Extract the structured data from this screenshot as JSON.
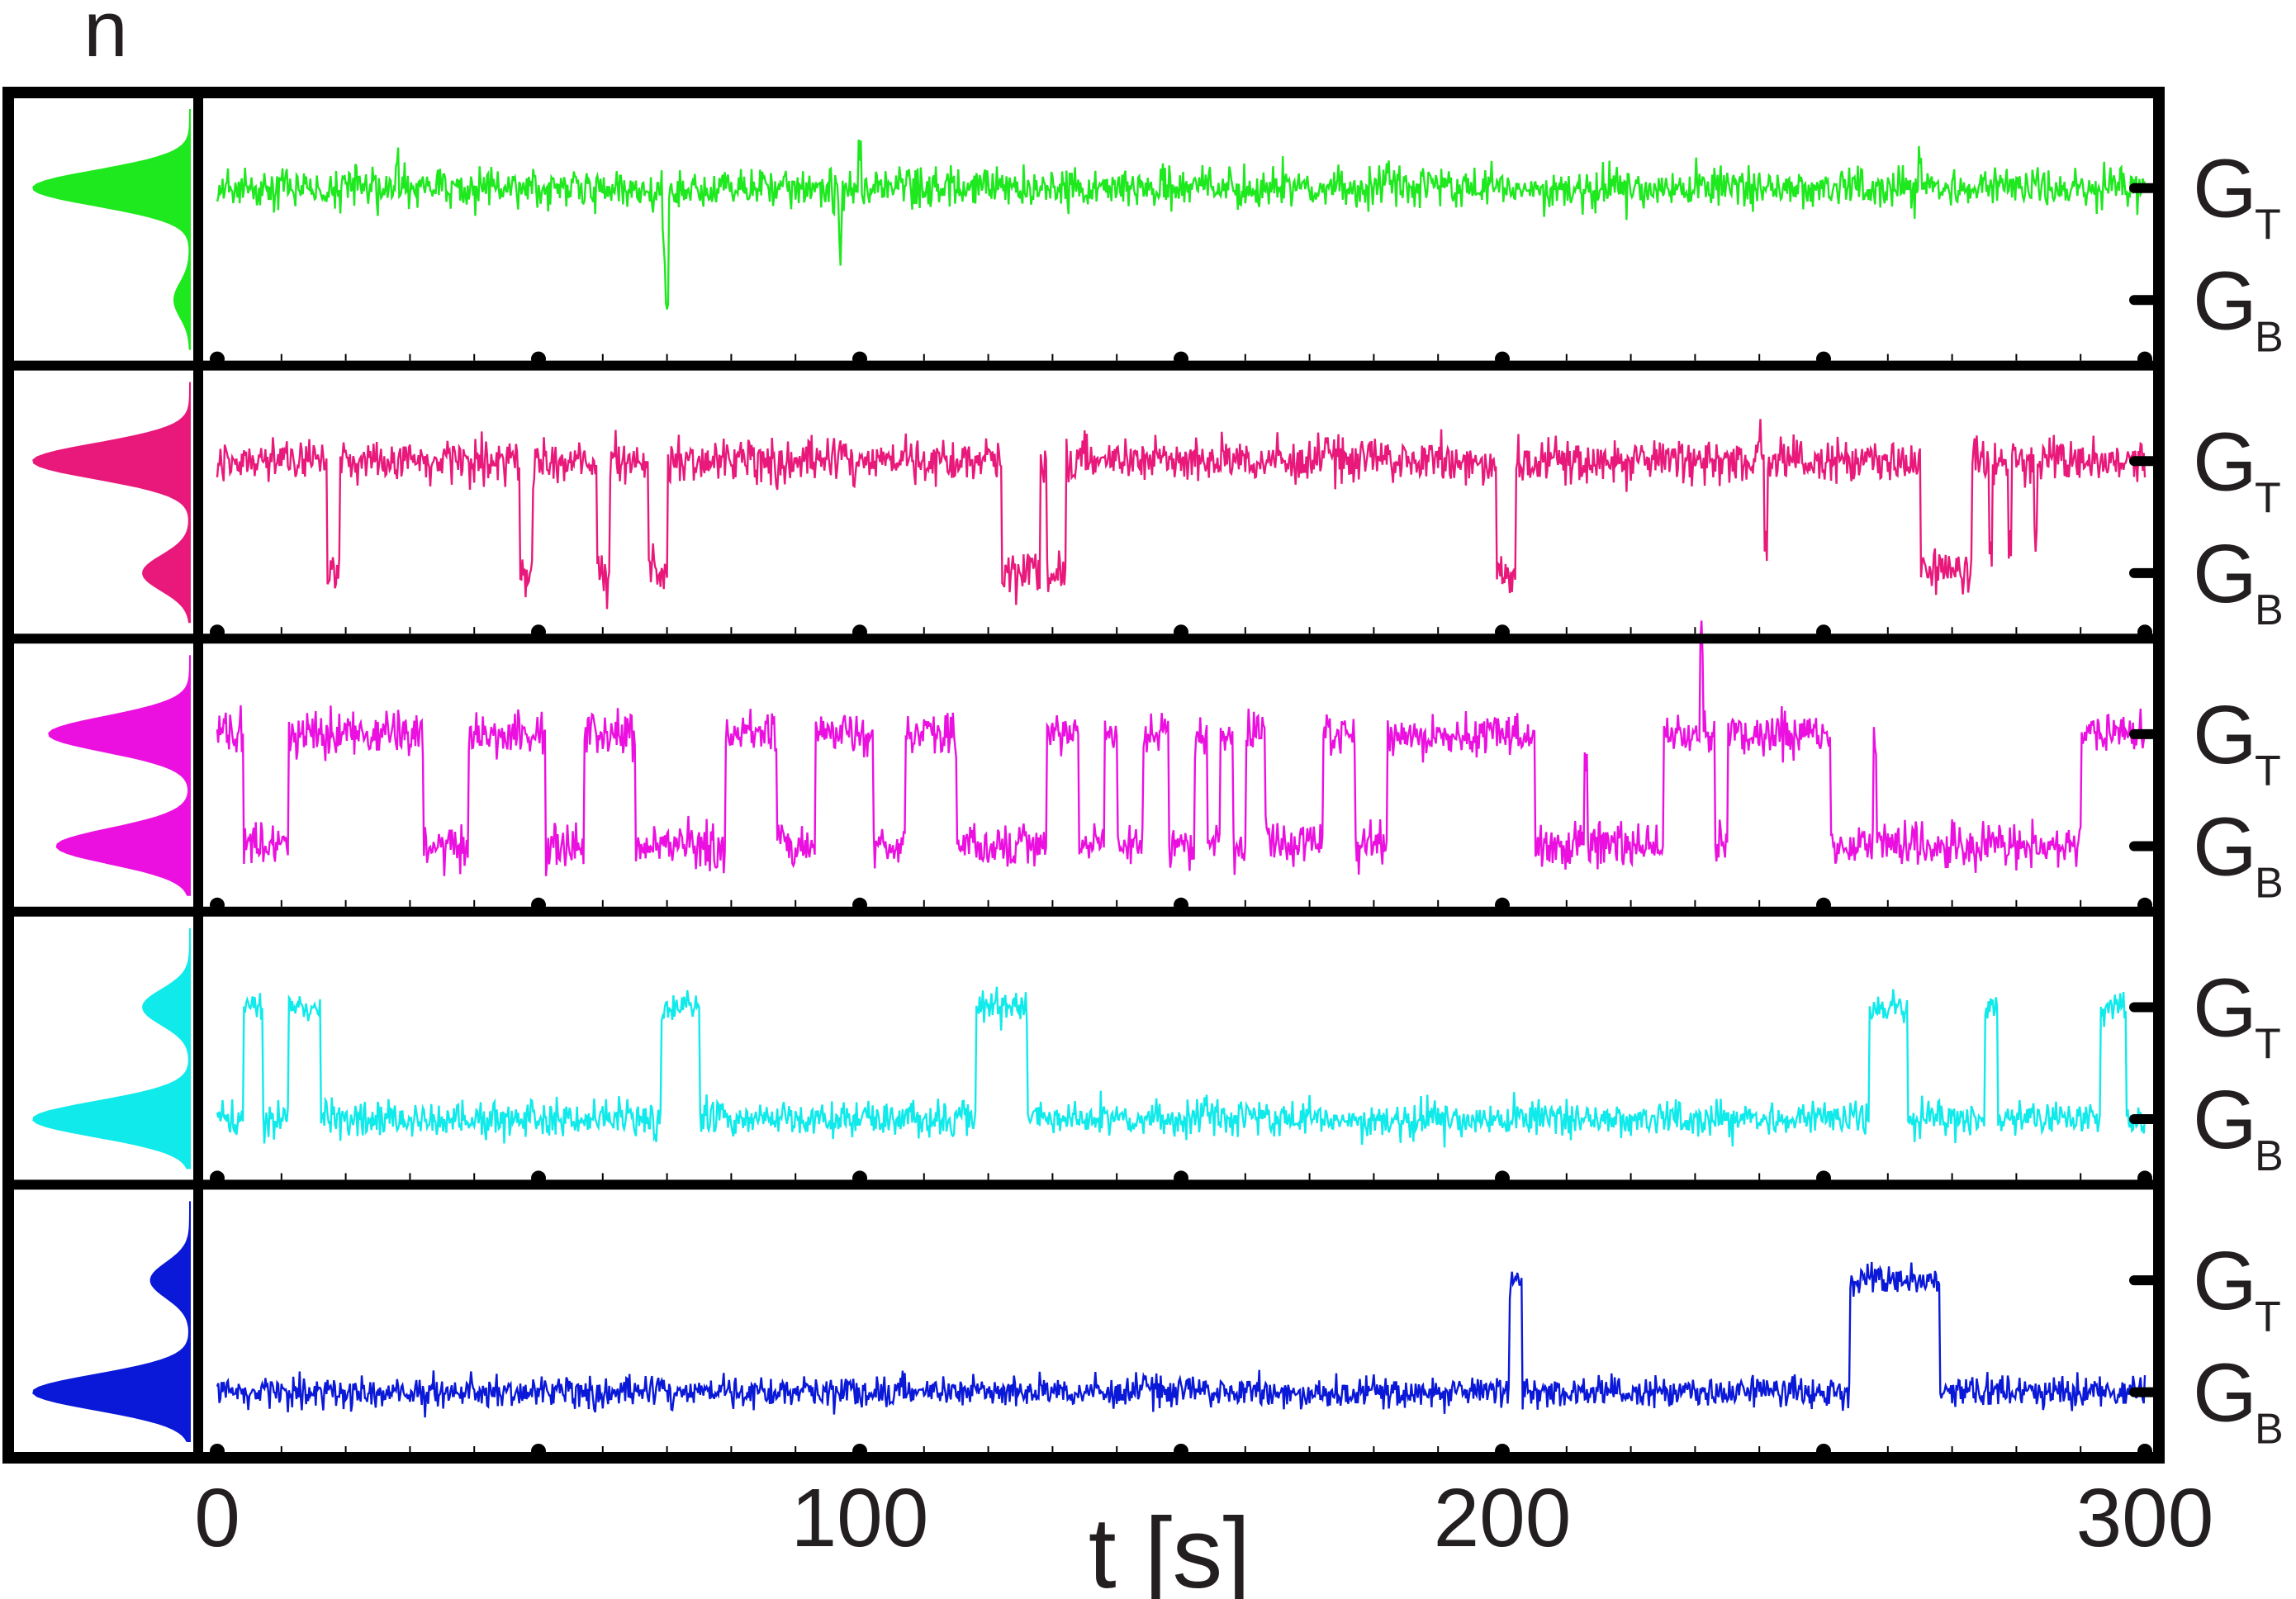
{
  "chart_data": {
    "type": "line",
    "title": "",
    "y_axis_label": "n",
    "x_axis_label": "t [s]",
    "x_ticks": [
      "0",
      "100",
      "200",
      "300"
    ],
    "xlim": [
      0,
      300
    ],
    "level_labels": {
      "top": {
        "main": "G",
        "sub": "T"
      },
      "bottom": {
        "main": "G",
        "sub": "B"
      }
    },
    "grid": false,
    "panels": [
      {
        "name": "",
        "color": "#1ee81e",
        "base_level": "top",
        "noise": 0.09,
        "dwells": [
          [
            0,
            300,
            "T"
          ]
        ],
        "spikes": [
          [
            28,
            "up",
            0.25
          ],
          [
            70,
            "down",
            1.05
          ],
          [
            69.5,
            "down",
            0.5
          ],
          [
            97,
            "down",
            0.55
          ],
          [
            100,
            "up",
            0.35
          ],
          [
            265,
            "up",
            0.3
          ]
        ],
        "hist": {
          "top_weight": 1.0,
          "bottom_weight": 0.1
        }
      },
      {
        "name": "",
        "color": "#e8197a",
        "base_level": "top",
        "noise": 0.1,
        "dwells": [
          [
            0,
            17,
            "T"
          ],
          [
            17,
            19,
            "B"
          ],
          [
            19,
            47,
            "T"
          ],
          [
            47,
            49,
            "B"
          ],
          [
            49,
            59,
            "T"
          ],
          [
            59,
            61,
            "B"
          ],
          [
            61,
            67,
            "T"
          ],
          [
            67,
            70,
            "B"
          ],
          [
            70,
            122,
            "T"
          ],
          [
            122,
            128,
            "B"
          ],
          [
            128,
            129,
            "T"
          ],
          [
            129,
            132,
            "B"
          ],
          [
            132,
            199,
            "T"
          ],
          [
            199,
            202,
            "B"
          ],
          [
            202,
            265,
            "T"
          ],
          [
            265,
            273,
            "B"
          ],
          [
            273,
            300,
            "T"
          ]
        ],
        "spikes": [
          [
            240,
            "up",
            0.3
          ],
          [
            241,
            "down",
            0.8
          ],
          [
            276,
            "down",
            0.8
          ],
          [
            279,
            "down",
            0.7
          ],
          [
            283,
            "down",
            0.6
          ]
        ],
        "hist": {
          "top_weight": 1.0,
          "bottom_weight": 0.3
        }
      },
      {
        "name": "",
        "color": "#ec10e0",
        "base_level": "top",
        "noise": 0.1,
        "dwells": [
          [
            0,
            4,
            "T"
          ],
          [
            4,
            11,
            "B"
          ],
          [
            11,
            32,
            "T"
          ],
          [
            32,
            39,
            "B"
          ],
          [
            39,
            51,
            "T"
          ],
          [
            51,
            57,
            "B"
          ],
          [
            57,
            65,
            "T"
          ],
          [
            65,
            79,
            "B"
          ],
          [
            79,
            87,
            "T"
          ],
          [
            87,
            93,
            "B"
          ],
          [
            93,
            102,
            "T"
          ],
          [
            102,
            107,
            "B"
          ],
          [
            107,
            115,
            "T"
          ],
          [
            115,
            129,
            "B"
          ],
          [
            129,
            134,
            "T"
          ],
          [
            134,
            138,
            "B"
          ],
          [
            138,
            140,
            "T"
          ],
          [
            140,
            144,
            "B"
          ],
          [
            144,
            148,
            "T"
          ],
          [
            148,
            152,
            "B"
          ],
          [
            152,
            154,
            "T"
          ],
          [
            154,
            156,
            "B"
          ],
          [
            156,
            158,
            "T"
          ],
          [
            158,
            160,
            "B"
          ],
          [
            160,
            163,
            "T"
          ],
          [
            163,
            172,
            "B"
          ],
          [
            172,
            177,
            "T"
          ],
          [
            177,
            182,
            "B"
          ],
          [
            182,
            205,
            "T"
          ],
          [
            205,
            225,
            "B"
          ],
          [
            225,
            233,
            "T"
          ],
          [
            233,
            235,
            "B"
          ],
          [
            235,
            251,
            "T"
          ],
          [
            251,
            290,
            "B"
          ],
          [
            290,
            300,
            "T"
          ]
        ],
        "spikes": [
          [
            213,
            "up",
            0.8
          ],
          [
            231,
            "up",
            0.85
          ],
          [
            258,
            "up",
            0.9
          ]
        ],
        "hist": {
          "top_weight": 0.9,
          "bottom_weight": 0.85
        }
      },
      {
        "name": "",
        "color": "#10eaea",
        "base_level": "bottom",
        "noise": 0.08,
        "dwells": [
          [
            0,
            4,
            "B"
          ],
          [
            4,
            7,
            "T"
          ],
          [
            7,
            11,
            "B"
          ],
          [
            11,
            16,
            "T"
          ],
          [
            16,
            69,
            "B"
          ],
          [
            69,
            75,
            "T"
          ],
          [
            75,
            118,
            "B"
          ],
          [
            118,
            126,
            "T"
          ],
          [
            126,
            257,
            "B"
          ],
          [
            257,
            263,
            "T"
          ],
          [
            263,
            275,
            "B"
          ],
          [
            275,
            277,
            "T"
          ],
          [
            277,
            293,
            "B"
          ],
          [
            293,
            297,
            "T"
          ],
          [
            297,
            300,
            "B"
          ]
        ],
        "spikes": [],
        "hist": {
          "top_weight": 0.3,
          "bottom_weight": 1.0
        }
      },
      {
        "name": "",
        "color": "#0a18d8",
        "base_level": "bottom",
        "noise": 0.07,
        "dwells": [
          [
            0,
            201,
            "B"
          ],
          [
            201,
            203,
            "T"
          ],
          [
            203,
            254,
            "B"
          ],
          [
            254,
            268,
            "T"
          ],
          [
            268,
            300,
            "B"
          ]
        ],
        "spikes": [],
        "hist": {
          "top_weight": 0.25,
          "bottom_weight": 1.0
        }
      }
    ]
  }
}
